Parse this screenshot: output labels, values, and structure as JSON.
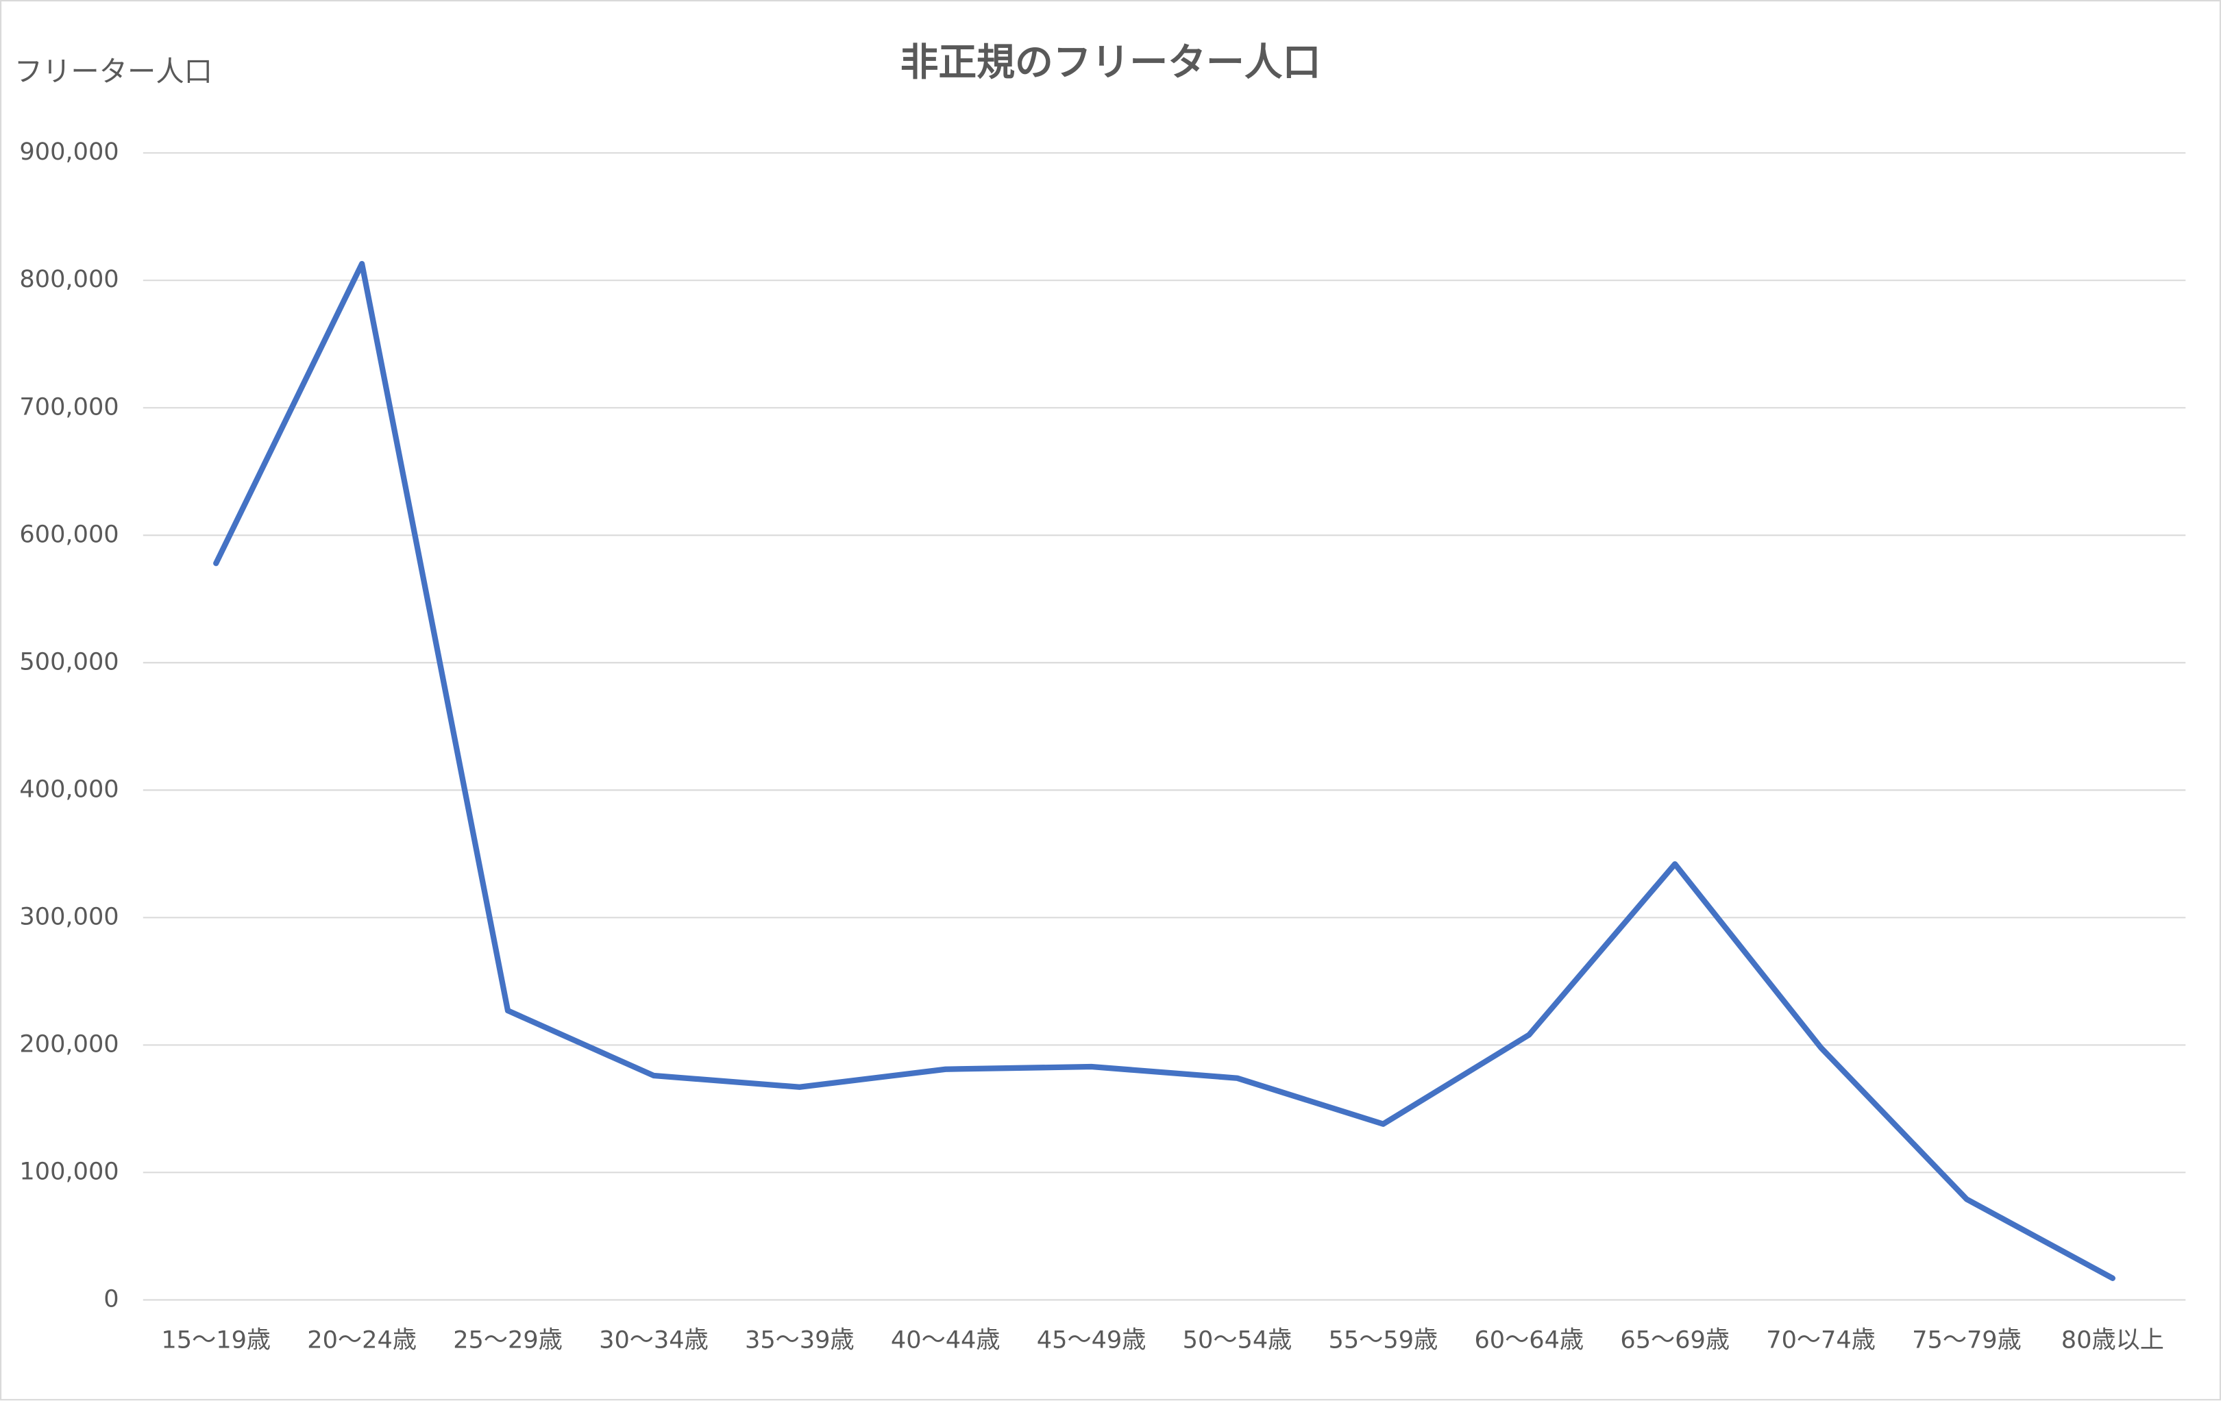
{
  "chart_data": {
    "type": "line",
    "title": "非正規のフリーター人口",
    "y_label": "フリーター人口",
    "categories": [
      "15〜19歳",
      "20〜24歳",
      "25〜29歳",
      "30〜34歳",
      "35〜39歳",
      "40〜44歳",
      "45〜49歳",
      "50〜54歳",
      "55〜59歳",
      "60〜64歳",
      "65〜69歳",
      "70〜74歳",
      "75〜79歳",
      "80歳以上"
    ],
    "series": [
      {
        "name": "フリーター人口",
        "color": "#4472c4",
        "values": [
          578000,
          813000,
          227000,
          176000,
          167000,
          181000,
          183000,
          174000,
          138000,
          208000,
          342000,
          198000,
          79000,
          17000
        ]
      }
    ],
    "ylim": [
      0,
      900000
    ],
    "yticks": [
      0,
      {
        "value": 100000,
        "label": "100,000"
      },
      {
        "value": 200000,
        "label": "200,000"
      },
      {
        "value": 300000,
        "label": "300,000"
      },
      {
        "value": 400000,
        "label": "400,000"
      },
      {
        "value": 500000,
        "label": "500,000"
      },
      {
        "value": 600000,
        "label": "600,000"
      },
      {
        "value": 700000,
        "label": "700,000"
      },
      {
        "value": 800000,
        "label": "800,000"
      },
      {
        "value": 900000,
        "label": "900,000"
      }
    ],
    "grid": true
  }
}
